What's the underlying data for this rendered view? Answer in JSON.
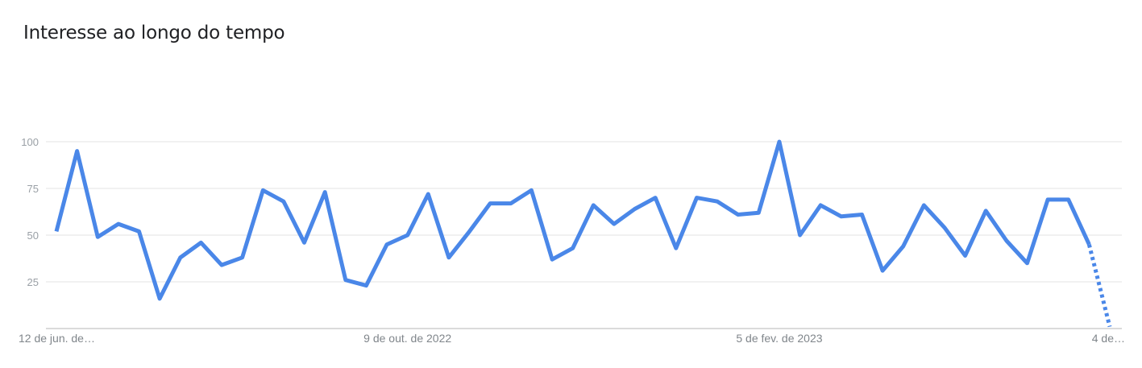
{
  "title": "Interesse ao longo do tempo",
  "colors": {
    "line": "#4a87e8",
    "grid": "#e3e3e3",
    "axis": "#cfcfcf"
  },
  "chart_data": {
    "type": "line",
    "title": "Interesse ao longo do tempo",
    "xlabel": "",
    "ylabel": "",
    "ylim": [
      0,
      100
    ],
    "yticks": [
      25,
      50,
      75,
      100
    ],
    "x_tick_labels": [
      "12 de jun. de…",
      "9 de out. de 2022",
      "5 de fev. de 2023",
      "4 de…"
    ],
    "x_tick_index": [
      0,
      17,
      35,
      51
    ],
    "grid": true,
    "legend": "none",
    "partial_last_segment": true,
    "series": [
      {
        "values": [
          52,
          95,
          49,
          56,
          52,
          16,
          38,
          46,
          34,
          38,
          74,
          68,
          46,
          73,
          26,
          23,
          45,
          50,
          72,
          38,
          52,
          67,
          67,
          74,
          37,
          43,
          66,
          56,
          64,
          70,
          43,
          70,
          68,
          61,
          62,
          100,
          50,
          66,
          60,
          61,
          31,
          44,
          66,
          54,
          39,
          63,
          47,
          35,
          69,
          69,
          45,
          1
        ]
      }
    ]
  }
}
